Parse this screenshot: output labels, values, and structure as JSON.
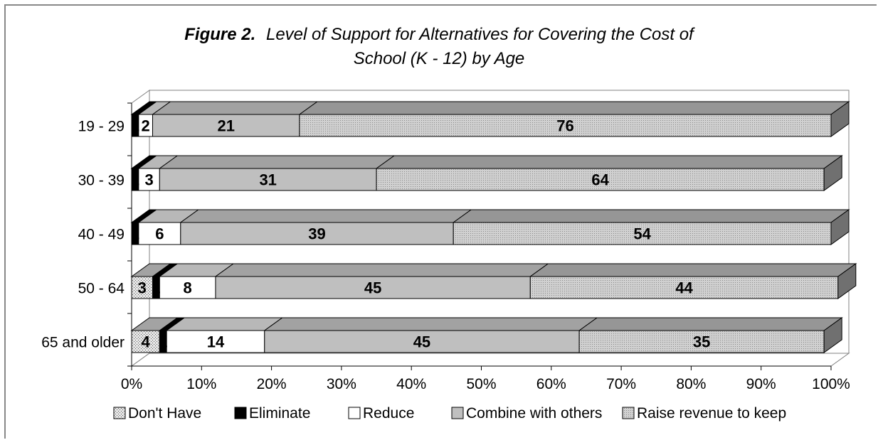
{
  "chart_data": {
    "type": "bar",
    "orientation": "horizontal",
    "stacked": "percent",
    "three_d": true,
    "title": {
      "prefix": "Figure 2.",
      "line1": "Level of Support for Alternatives for Covering the Cost of",
      "line2": "School (K - 12) by Age"
    },
    "categories": [
      "19 - 29",
      "30 - 39",
      "40 - 49",
      "50 - 64",
      "65 and older"
    ],
    "series": [
      {
        "name": "Don't Have",
        "values": [
          0,
          0,
          0,
          3,
          4
        ],
        "color": "#d9d9d9",
        "pattern": "dots"
      },
      {
        "name": "Eliminate",
        "values": [
          1,
          1,
          1,
          1,
          1
        ],
        "color": "#000000",
        "pattern": "solid"
      },
      {
        "name": "Reduce",
        "values": [
          2,
          3,
          6,
          8,
          14
        ],
        "color": "#ffffff",
        "pattern": "solid"
      },
      {
        "name": "Combine with others",
        "values": [
          21,
          31,
          39,
          45,
          45
        ],
        "color": "#bfbfbf",
        "pattern": "solid"
      },
      {
        "name": "Raise revenue to keep",
        "values": [
          76,
          64,
          54,
          44,
          35
        ],
        "color": "#c8c8c8",
        "pattern": "stipple"
      }
    ],
    "data_labels": [
      [
        "",
        "1",
        "2",
        "21",
        "76"
      ],
      [
        "",
        "1",
        "3",
        "31",
        "64"
      ],
      [
        "",
        "1",
        "6",
        "39",
        "54"
      ],
      [
        "3",
        "1",
        "8",
        "45",
        "44"
      ],
      [
        "4",
        "1",
        "14",
        "45",
        "35"
      ]
    ],
    "x_ticks": [
      "0%",
      "10%",
      "20%",
      "30%",
      "40%",
      "50%",
      "60%",
      "70%",
      "80%",
      "90%",
      "100%"
    ],
    "xlim": [
      0,
      100
    ],
    "legend_position": "bottom",
    "grid": false
  }
}
